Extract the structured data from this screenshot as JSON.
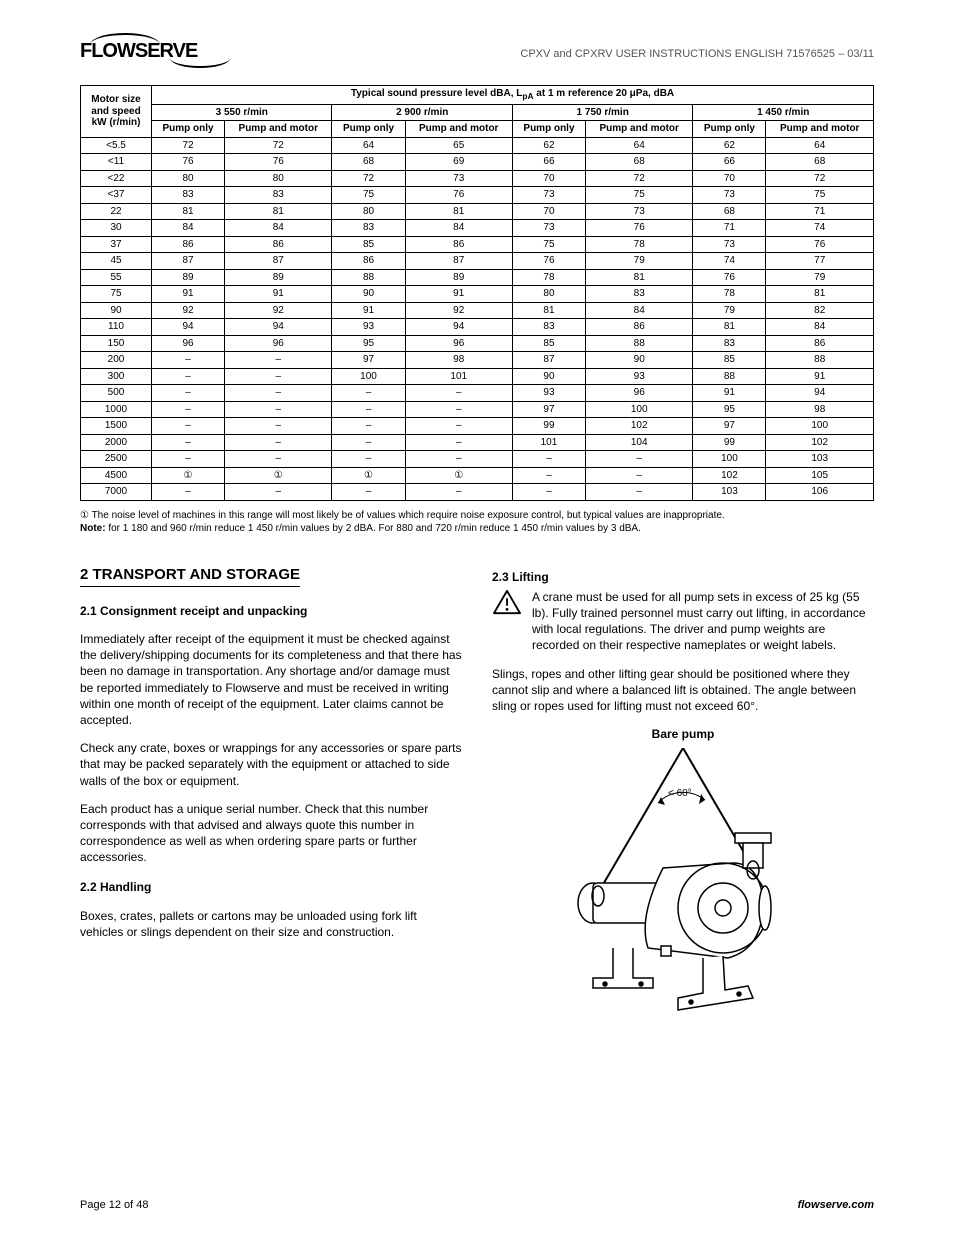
{
  "doc_header": "CPXV and CPXRV USER INSTRUCTIONS ENGLISH 71576525 – 03/11",
  "logo_text": "FLOWSERVE",
  "table": {
    "main_header": "Typical sound pressure level dBA, L<sub>pA</sub> at 1 m reference 20 μPa, dBA",
    "left_header_l1": "Motor size",
    "left_header_l2": "and speed",
    "left_header_l3": "kW (r/min)",
    "group_headers": [
      "3 550 r/min",
      "2 900 r/min",
      "1 750 r/min",
      "1 450 r/min"
    ],
    "sub_headers": [
      "Pump only",
      "Pump and motor"
    ],
    "rows": [
      {
        "label": "<5.5",
        "v": [
          "72",
          "72",
          "64",
          "65",
          "62",
          "64",
          "62",
          "64"
        ]
      },
      {
        "label": "<11",
        "v": [
          "76",
          "76",
          "68",
          "69",
          "66",
          "68",
          "66",
          "68"
        ]
      },
      {
        "label": "<22",
        "v": [
          "80",
          "80",
          "72",
          "73",
          "70",
          "72",
          "70",
          "72"
        ]
      },
      {
        "label": "<37",
        "v": [
          "83",
          "83",
          "75",
          "76",
          "73",
          "75",
          "73",
          "75"
        ]
      },
      {
        "label": "22",
        "v": [
          "81",
          "81",
          "80",
          "81",
          "70",
          "73",
          "68",
          "71"
        ]
      },
      {
        "label": "30",
        "v": [
          "84",
          "84",
          "83",
          "84",
          "73",
          "76",
          "71",
          "74"
        ]
      },
      {
        "label": "37",
        "v": [
          "86",
          "86",
          "85",
          "86",
          "75",
          "78",
          "73",
          "76"
        ]
      },
      {
        "label": "45",
        "v": [
          "87",
          "87",
          "86",
          "87",
          "76",
          "79",
          "74",
          "77"
        ]
      },
      {
        "label": "55",
        "v": [
          "89",
          "89",
          "88",
          "89",
          "78",
          "81",
          "76",
          "79"
        ]
      },
      {
        "label": "75",
        "v": [
          "91",
          "91",
          "90",
          "91",
          "80",
          "83",
          "78",
          "81"
        ]
      },
      {
        "label": "90",
        "v": [
          "92",
          "92",
          "91",
          "92",
          "81",
          "84",
          "79",
          "82"
        ]
      },
      {
        "label": "110",
        "v": [
          "94",
          "94",
          "93",
          "94",
          "83",
          "86",
          "81",
          "84"
        ]
      },
      {
        "label": "150",
        "v": [
          "96",
          "96",
          "95",
          "96",
          "85",
          "88",
          "83",
          "86"
        ]
      },
      {
        "label": "200",
        "v": [
          "–",
          "–",
          "97",
          "98",
          "87",
          "90",
          "85",
          "88"
        ]
      },
      {
        "label": "300",
        "v": [
          "–",
          "–",
          "100",
          "101",
          "90",
          "93",
          "88",
          "91"
        ]
      },
      {
        "label": "500",
        "v": [
          "–",
          "–",
          "–",
          "–",
          "93",
          "96",
          "91",
          "94"
        ]
      },
      {
        "label": "1000",
        "v": [
          "–",
          "–",
          "–",
          "–",
          "97",
          "100",
          "95",
          "98"
        ]
      },
      {
        "label": "1500",
        "v": [
          "–",
          "–",
          "–",
          "–",
          "99",
          "102",
          "97",
          "100"
        ]
      },
      {
        "label": "2000",
        "v": [
          "–",
          "–",
          "–",
          "–",
          "101",
          "104",
          "99",
          "102"
        ]
      },
      {
        "label": "2500",
        "v": [
          "–",
          "–",
          "–",
          "–",
          "–",
          "–",
          "100",
          "103"
        ]
      },
      {
        "label": "4500",
        "v": [
          "①",
          "①",
          "①",
          "①",
          "–",
          "–",
          "102",
          "105"
        ]
      },
      {
        "label": "7000",
        "v": [
          "–",
          "–",
          "–",
          "–",
          "–",
          "–",
          "103",
          "106"
        ]
      }
    ]
  },
  "footnote1_marker": "①",
  "footnote1": "The noise level of machines in this range will most likely be of values which require noise exposure control, but typical values are inappropriate.",
  "footnote2_label": "Note:",
  "footnote2": "for 1 180 and 960 r/min reduce 1 450 r/min values by 2 dBA.  For 880 and 720 r/min reduce 1 450 r/min values by 3 dBA.",
  "section2": {
    "title": "2  TRANSPORT AND STORAGE",
    "s21_title": "2.1  Consignment receipt and unpacking",
    "s21_p1": "Immediately after receipt of the equipment it must be checked against the delivery/shipping documents for its completeness and that there has been no damage in transportation.  Any shortage and/or damage must be reported immediately to Flowserve and must be received in writing within one month of receipt of the equipment.  Later claims cannot be accepted.",
    "s21_p2": "Check any crate, boxes or wrappings for any accessories or spare parts that may be packed separately with the equipment or attached to side walls of the box or equipment.",
    "s21_p3": "Each product has a unique serial number.  Check that this number corresponds with that advised and always quote this number in correspondence as well as when ordering spare parts or further accessories.",
    "s22_title": "2.2  Handling",
    "s22_p1": "Boxes, crates, pallets or cartons may be unloaded using fork lift vehicles or slings dependent on their size and construction.",
    "s23_title": "2.3  Lifting",
    "s23_warn": "A crane must be used for all pump sets in excess of 25 kg (55 lb).  Fully trained personnel must carry out lifting, in accordance with local regulations.  The driver and pump weights are recorded on their respective nameplates or weight labels.",
    "s23_p1": "Slings, ropes and other lifting gear should be positioned where they cannot slip and where a balanced lift is obtained.  The angle between sling or ropes used for lifting must not exceed 60°.",
    "figure_caption": "Bare pump",
    "angle_label": "< 60°"
  },
  "footer": {
    "page": "Page 12 of 48",
    "site": "flowserve.com"
  }
}
